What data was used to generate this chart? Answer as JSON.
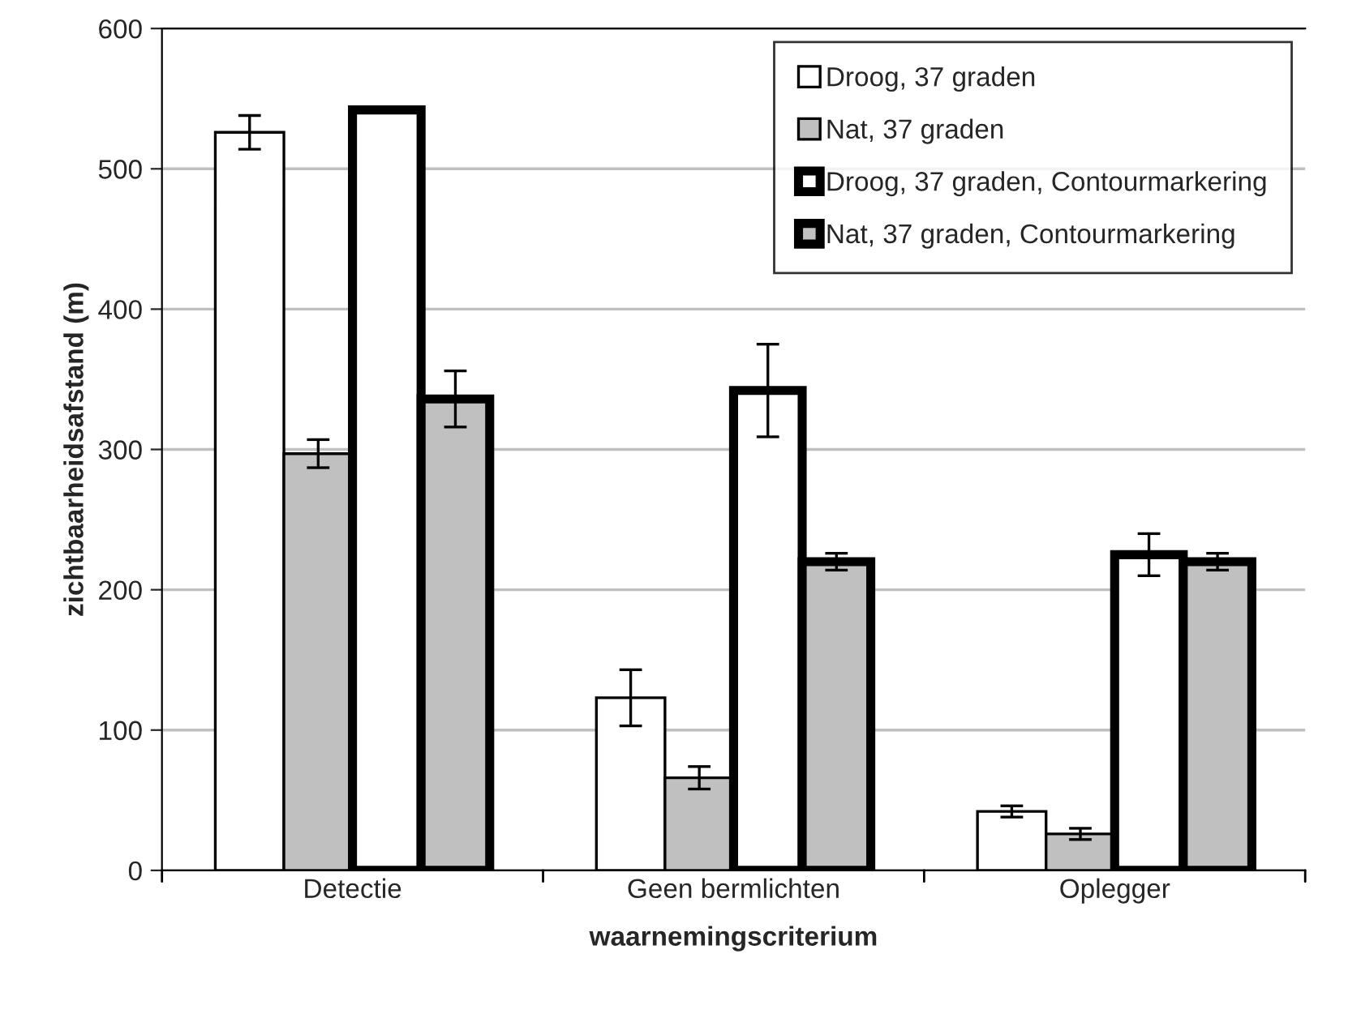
{
  "chart_data": {
    "type": "bar",
    "xlabel": "waarnemingscriterium",
    "ylabel": "zichtbaarheidsafstand (m)",
    "categories": [
      "Detectie",
      "Geen bermlichten",
      "Oplegger"
    ],
    "series": [
      {
        "name": "Droog, 37 graden",
        "color": "#ffffff",
        "values": [
          526,
          123,
          42
        ],
        "errors": [
          12,
          20,
          4
        ]
      },
      {
        "name": "Nat, 37 graden",
        "color": "#c0c0c0",
        "values": [
          297,
          66,
          26
        ],
        "errors": [
          10,
          8,
          4
        ]
      },
      {
        "name": "Droog, 37 graden, Contourmarkering",
        "color": "#ffffff",
        "values": [
          542,
          342,
          225
        ],
        "errors": [
          null,
          33,
          15
        ]
      },
      {
        "name": "Nat, 37 graden, Contourmarkering",
        "color": "#c0c0c0",
        "values": [
          336,
          220,
          220
        ],
        "errors": [
          20,
          6,
          6
        ]
      }
    ],
    "ylim": [
      0,
      600
    ],
    "yticks": [
      0,
      100,
      200,
      300,
      400,
      500,
      600
    ],
    "grid": "y",
    "legend": "top right"
  }
}
